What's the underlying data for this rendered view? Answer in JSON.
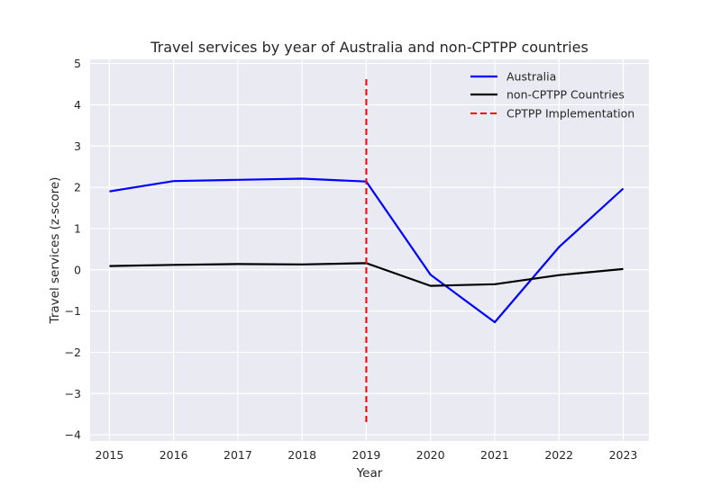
{
  "chart_data": {
    "type": "line",
    "title": "Travel services by year of Australia and non-CPTPP countries",
    "xlabel": "Year",
    "ylabel": "Travel services (z-score)",
    "x": [
      2015,
      2016,
      2017,
      2018,
      2019,
      2020,
      2021,
      2022,
      2023
    ],
    "xlim": [
      2014.7,
      2023.4
    ],
    "ylim": [
      -4.15,
      5.1
    ],
    "x_ticks": [
      "2015",
      "2016",
      "2017",
      "2018",
      "2019",
      "2020",
      "2021",
      "2022",
      "2023"
    ],
    "y_ticks": [
      "−4",
      "−3",
      "−2",
      "−1",
      "0",
      "1",
      "2",
      "3",
      "4",
      "5"
    ],
    "y_tick_values": [
      -4,
      -3,
      -2,
      -1,
      0,
      1,
      2,
      3,
      4,
      5
    ],
    "grid": true,
    "legend_position": "top-right",
    "series": [
      {
        "name": "Australia",
        "color": "#0000ff",
        "style": "solid",
        "values": [
          1.9,
          2.15,
          2.18,
          2.21,
          2.14,
          -0.12,
          -1.27,
          0.55,
          1.97
        ]
      },
      {
        "name": "non-CPTPP Countries",
        "color": "#000000",
        "style": "solid",
        "values": [
          0.09,
          0.12,
          0.14,
          0.13,
          0.16,
          -0.39,
          -0.35,
          -0.13,
          0.02
        ]
      }
    ],
    "vline": {
      "name": "CPTPP Implementation",
      "x": 2019,
      "y_range": [
        -3.75,
        4.62
      ],
      "color": "#ff0000",
      "style": "dashed"
    }
  }
}
